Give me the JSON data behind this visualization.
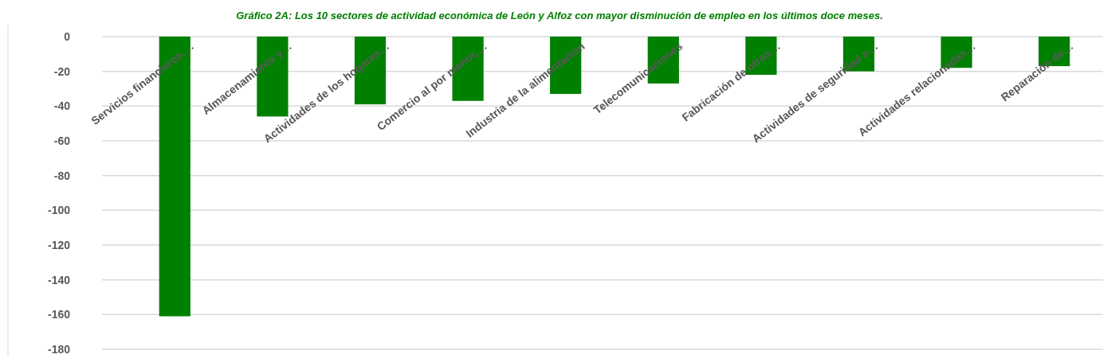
{
  "chart_data": {
    "type": "bar",
    "title": "Gráfico 2A: Los 10 sectores de actividad económica de León y Alfoz con mayor disminución de empleo en los últimos doce meses.",
    "categories": [
      "Servicios financieros,…",
      "Almacenamiento y…",
      "Actividades de los hogares…",
      "Comercio al por menor,…",
      "Industria de la alimentación",
      "Telecomunicaciones",
      "Fabricación de otros…",
      "Actividades de seguridad e…",
      "Actividades relacionadas…",
      "Reparación de…"
    ],
    "values": [
      -161,
      -46,
      -39,
      -37,
      -33,
      -27,
      -22,
      -20,
      -18,
      -17
    ],
    "color": "#008000",
    "ylim": [
      -180,
      0
    ],
    "yticks": [
      0,
      -20,
      -40,
      -60,
      -80,
      -100,
      -120,
      -140,
      -160,
      -180
    ],
    "grid": "y"
  }
}
